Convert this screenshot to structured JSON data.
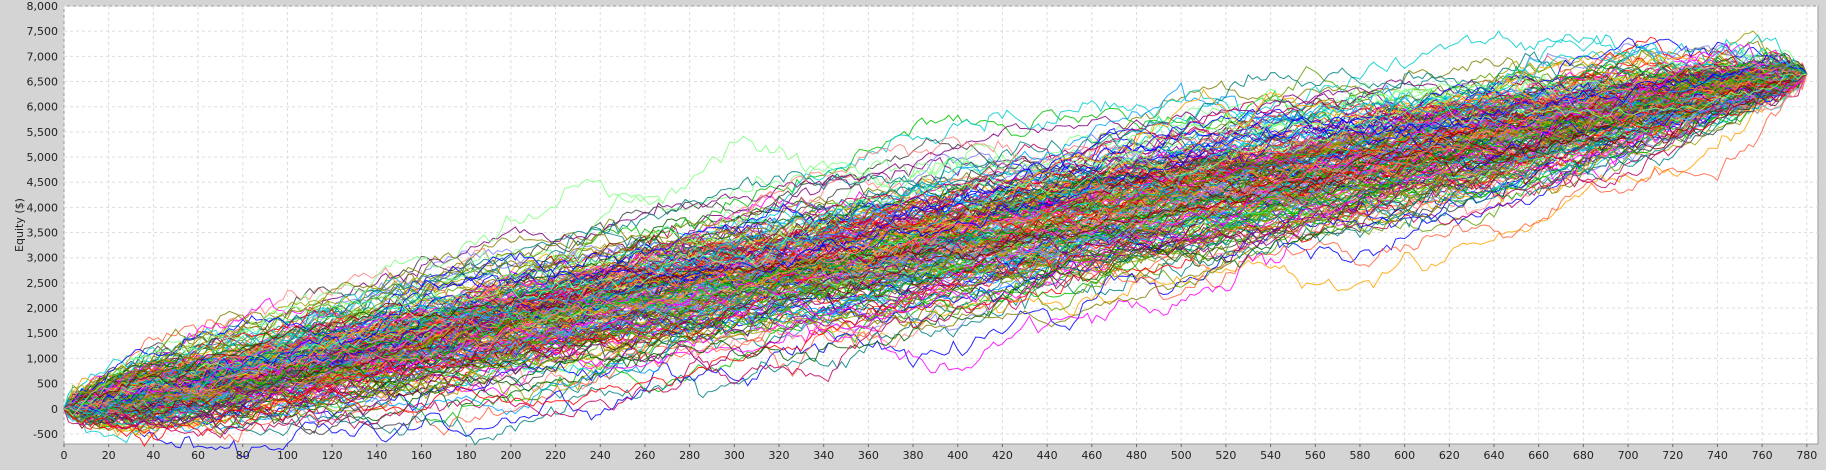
{
  "chart_data": {
    "type": "line",
    "title": "",
    "xlabel": "",
    "ylabel": "Equity ($)",
    "xlim": [
      0,
      785
    ],
    "ylim": [
      -700,
      8000
    ],
    "x_ticks": [
      "0",
      "20",
      "40",
      "60",
      "80",
      "100",
      "120",
      "140",
      "160",
      "180",
      "200",
      "220",
      "240",
      "260",
      "280",
      "300",
      "320",
      "340",
      "360",
      "380",
      "400",
      "420",
      "440",
      "460",
      "480",
      "500",
      "520",
      "540",
      "560",
      "580",
      "600",
      "620",
      "640",
      "660",
      "680",
      "700",
      "720",
      "740",
      "760",
      "780"
    ],
    "y_ticks": [
      "-500",
      "0",
      "500",
      "1,000",
      "1,500",
      "2,000",
      "2,500",
      "3,000",
      "3,500",
      "4,000",
      "4,500",
      "5,000",
      "5,500",
      "6,000",
      "6,500",
      "7,000",
      "7,500",
      "8,000"
    ],
    "grid": true,
    "legend": "none",
    "description_of_series": "~250 Monte Carlo equity curves, each starting at (0, 0) and ending near (780, 6650)",
    "simulation": {
      "num_series": 250,
      "num_steps": 780,
      "start_value": 0,
      "end_value": 6650
    },
    "envelope": [
      {
        "x": 0,
        "low": -100,
        "high": 150
      },
      {
        "x": 40,
        "low": -380,
        "high": 1000
      },
      {
        "x": 100,
        "low": -300,
        "high": 1900
      },
      {
        "x": 200,
        "low": 50,
        "high": 2800
      },
      {
        "x": 260,
        "low": 800,
        "high": 3600
      },
      {
        "x": 340,
        "low": 1300,
        "high": 4200
      },
      {
        "x": 400,
        "low": 2000,
        "high": 4900
      },
      {
        "x": 460,
        "low": 2400,
        "high": 5700
      },
      {
        "x": 540,
        "low": 3500,
        "high": 6300
      },
      {
        "x": 600,
        "low": 4000,
        "high": 6400
      },
      {
        "x": 660,
        "low": 4500,
        "high": 7000
      },
      {
        "x": 700,
        "low": 5000,
        "high": 7600
      },
      {
        "x": 760,
        "low": 5800,
        "high": 7000
      },
      {
        "x": 780,
        "low": 6500,
        "high": 6750
      }
    ],
    "colors": [
      "#ff0000",
      "#00c000",
      "#0000ff",
      "#ff00ff",
      "#00cccc",
      "#808000",
      "#800000",
      "#008080",
      "#ff8080",
      "#80ff80",
      "#8080ff",
      "#006400",
      "#800080",
      "#ffa500",
      "#404040",
      "#a0a000",
      "#c00060",
      "#00a0ff",
      "#ff6040",
      "#60a000"
    ]
  }
}
